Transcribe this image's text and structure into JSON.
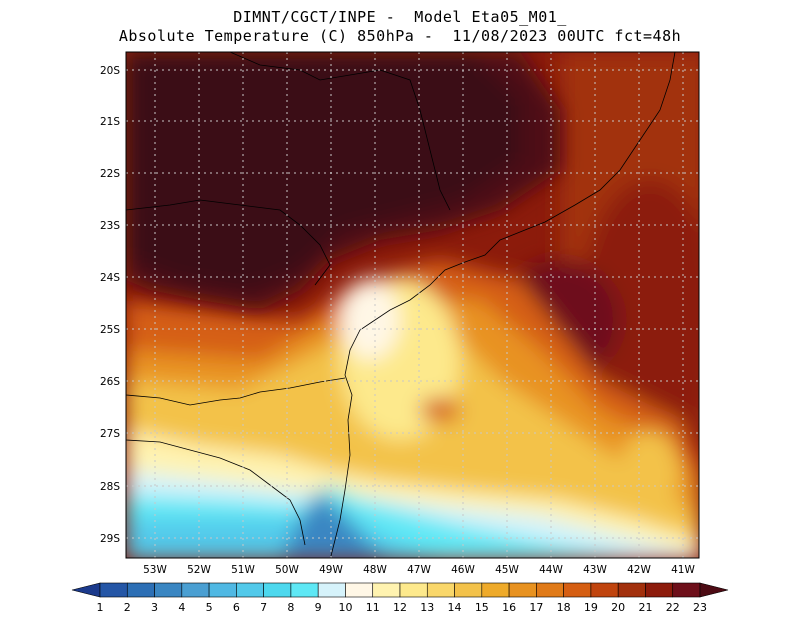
{
  "header": {
    "line1": "DIMNT/CGCT/INPE -  Model Eta05_M01_",
    "line2": "Absolute Temperature (C) 850hPa -  11/08/2023 00UTC fct=48h"
  },
  "axes": {
    "lat_labels": [
      "20S",
      "21S",
      "22S",
      "23S",
      "24S",
      "25S",
      "26S",
      "27S",
      "28S",
      "29S"
    ],
    "lon_labels": [
      "53W",
      "52W",
      "51W",
      "50W",
      "49W",
      "48W",
      "47W",
      "46W",
      "45W",
      "44W",
      "43W",
      "42W",
      "41W"
    ]
  },
  "colorbar": {
    "labels": [
      "1",
      "2",
      "3",
      "4",
      "5",
      "6",
      "7",
      "8",
      "9",
      "10",
      "11",
      "12",
      "13",
      "14",
      "15",
      "16",
      "17",
      "18",
      "19",
      "20",
      "21",
      "22",
      "23"
    ],
    "colors": [
      "#1b3a8c",
      "#2456a6",
      "#2c6fb5",
      "#3a86c2",
      "#4a9fd2",
      "#4fb8e3",
      "#52c9ea",
      "#4dd8ee",
      "#5ee8f5",
      "#d6f3fb",
      "#fff7e6",
      "#fff3b0",
      "#fde98c",
      "#f9d76a",
      "#f3c24a",
      "#eeaa2a",
      "#e89220",
      "#e07a18",
      "#d55e12",
      "#c0440e",
      "#a2300c",
      "#8c1b0b",
      "#6e0f1a",
      "#4d0b14"
    ]
  },
  "map": {
    "grid": "dotted",
    "lat_range": [
      -29.4,
      -19.6
    ],
    "lon_range": [
      -53.8,
      -40.6
    ]
  }
}
